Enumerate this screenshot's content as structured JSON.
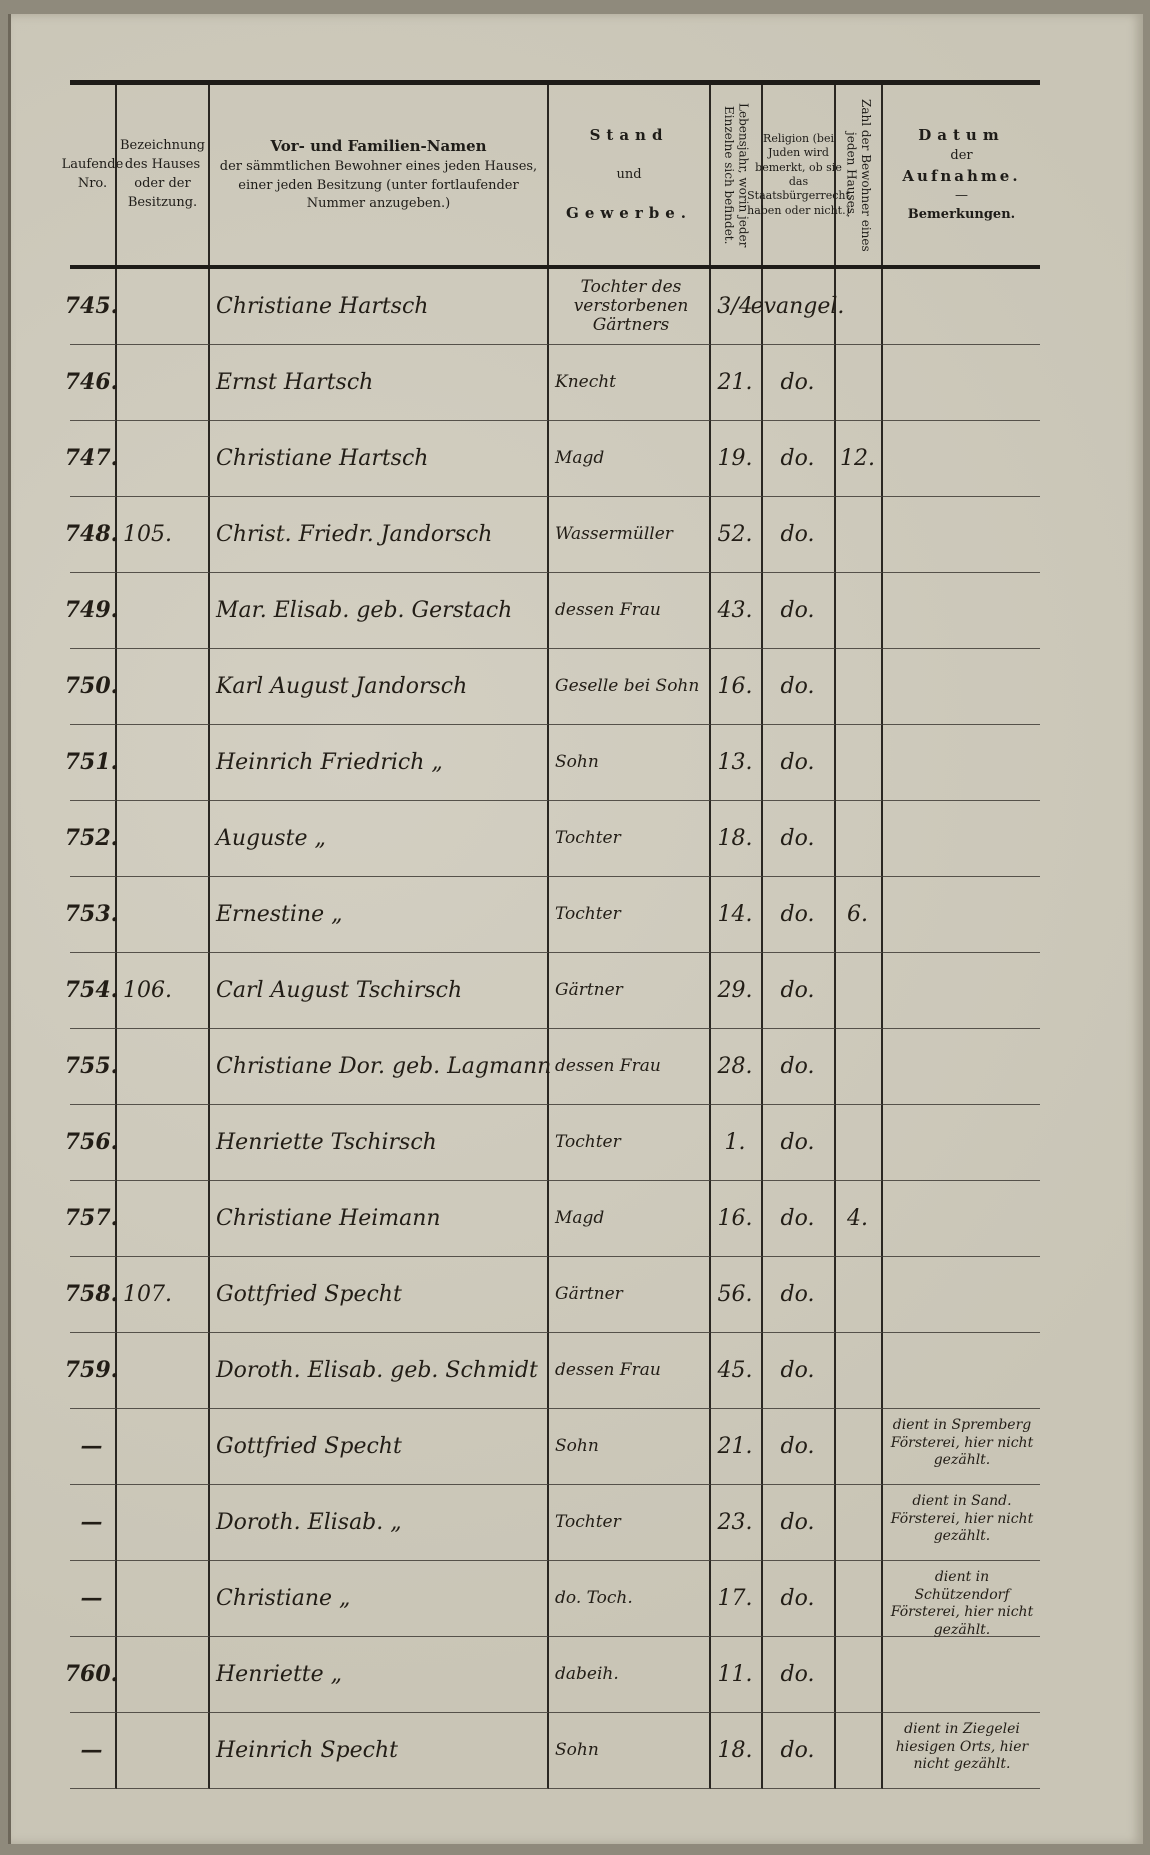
{
  "header": {
    "col_nr": "Laufende Nro.",
    "col_house": "Bezeichnung des Hauses oder der Besitzung.",
    "col_name_title": "Vor- und Familien-Namen",
    "col_name_sub": "der sämmtlichen Bewohner eines jeden Hauses, einer jeden Besitzung (unter fortlaufender Nummer anzugeben.)",
    "col_stand_1": "Stand",
    "col_stand_2": "und",
    "col_stand_3": "Gewerbe.",
    "col_age": "Lebensjahr, worin jeder Einzelne sich befindet.",
    "col_religion": "Religion (bei Juden wird bemerkt, ob sie das Staatsbürgerrecht haben oder nicht.)",
    "col_count": "Zahl der Bewohner eines jeden Hauses.",
    "col_date_1": "Datum",
    "col_date_2": "der",
    "col_date_3": "Aufnahme.",
    "col_date_4": "Bemerkungen."
  },
  "rows": [
    {
      "nr": "745.",
      "house": "",
      "name": "Christiane Hartsch",
      "stand": "Tochter des verstorbenen Gärtners",
      "age": "3/4",
      "religion": "evangel.",
      "count": "",
      "remark": ""
    },
    {
      "nr": "746.",
      "house": "",
      "name": "Ernst Hartsch",
      "stand": "Knecht",
      "age": "21.",
      "religion": "do.",
      "count": "",
      "remark": ""
    },
    {
      "nr": "747.",
      "house": "",
      "name": "Christiane Hartsch",
      "stand": "Magd",
      "age": "19.",
      "religion": "do.",
      "count": "12.",
      "remark": ""
    },
    {
      "nr": "748.",
      "house": "105.",
      "name": "Christ. Friedr. Jandorsch",
      "stand": "Wassermüller",
      "age": "52.",
      "religion": "do.",
      "count": "",
      "remark": ""
    },
    {
      "nr": "749.",
      "house": "",
      "name": "Mar. Elisab. geb. Gerstach",
      "stand": "dessen Frau",
      "age": "43.",
      "religion": "do.",
      "count": "",
      "remark": ""
    },
    {
      "nr": "750.",
      "house": "",
      "name": "Karl August Jandorsch",
      "stand": "Geselle bei Sohn",
      "age": "16.",
      "religion": "do.",
      "count": "",
      "remark": ""
    },
    {
      "nr": "751.",
      "house": "",
      "name": "Heinrich Friedrich „",
      "stand": "Sohn",
      "age": "13.",
      "religion": "do.",
      "count": "",
      "remark": ""
    },
    {
      "nr": "752.",
      "house": "",
      "name": "Auguste „",
      "stand": "Tochter",
      "age": "18.",
      "religion": "do.",
      "count": "",
      "remark": ""
    },
    {
      "nr": "753.",
      "house": "",
      "name": "Ernestine „",
      "stand": "Tochter",
      "age": "14.",
      "religion": "do.",
      "count": "6.",
      "remark": ""
    },
    {
      "nr": "754.",
      "house": "106.",
      "name": "Carl August Tschirsch",
      "stand": "Gärtner",
      "age": "29.",
      "religion": "do.",
      "count": "",
      "remark": ""
    },
    {
      "nr": "755.",
      "house": "",
      "name": "Christiane Dor. geb. Lagmann",
      "stand": "dessen Frau",
      "age": "28.",
      "religion": "do.",
      "count": "",
      "remark": ""
    },
    {
      "nr": "756.",
      "house": "",
      "name": "Henriette Tschirsch",
      "stand": "Tochter",
      "age": "1.",
      "religion": "do.",
      "count": "",
      "remark": ""
    },
    {
      "nr": "757.",
      "house": "",
      "name": "Christiane Heimann",
      "stand": "Magd",
      "age": "16.",
      "religion": "do.",
      "count": "4.",
      "remark": ""
    },
    {
      "nr": "758.",
      "house": "107.",
      "name": "Gottfried Specht",
      "stand": "Gärtner",
      "age": "56.",
      "religion": "do.",
      "count": "",
      "remark": ""
    },
    {
      "nr": "759.",
      "house": "",
      "name": "Doroth. Elisab. geb. Schmidt",
      "stand": "dessen Frau",
      "age": "45.",
      "religion": "do.",
      "count": "",
      "remark": ""
    },
    {
      "nr": "—",
      "house": "",
      "name": "Gottfried Specht",
      "stand": "Sohn",
      "age": "21.",
      "religion": "do.",
      "count": "",
      "remark": "dient in Spremberg Försterei, hier nicht gezählt."
    },
    {
      "nr": "—",
      "house": "",
      "name": "Doroth. Elisab. „",
      "stand": "Tochter",
      "age": "23.",
      "religion": "do.",
      "count": "",
      "remark": "dient in Sand. Försterei, hier nicht gezählt."
    },
    {
      "nr": "—",
      "house": "",
      "name": "Christiane „",
      "stand": "do. Toch.",
      "age": "17.",
      "religion": "do.",
      "count": "",
      "remark": "dient in Schützendorf Försterei, hier nicht gezählt."
    },
    {
      "nr": "760.",
      "house": "",
      "name": "Henriette „",
      "stand": "dabeih.",
      "age": "11.",
      "religion": "do.",
      "count": "",
      "remark": ""
    },
    {
      "nr": "—",
      "house": "",
      "name": "Heinrich Specht",
      "stand": "Sohn",
      "age": "18.",
      "religion": "do.",
      "count": "",
      "remark": "dient in Ziegelei hiesigen Orts, hier nicht gezählt."
    }
  ]
}
